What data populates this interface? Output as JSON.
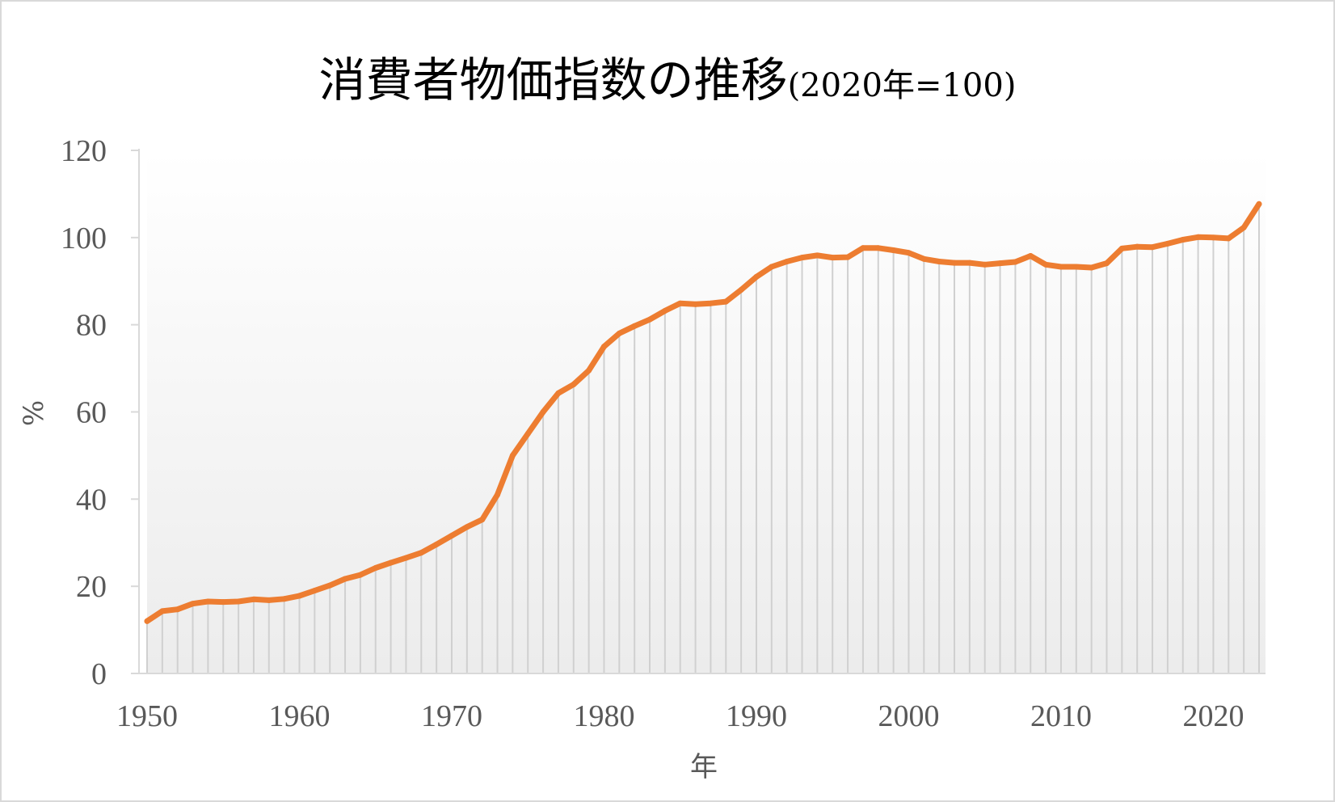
{
  "chart_data": {
    "type": "line",
    "title": "消費者物価指数の推移",
    "subtitle": "(2020年=100)",
    "xlabel": "年",
    "ylabel": "%",
    "ylim": [
      0,
      120
    ],
    "xlim": [
      1950,
      2023
    ],
    "y_ticks": [
      "0",
      "20",
      "40",
      "60",
      "80",
      "100",
      "120"
    ],
    "x_ticks": [
      "1950",
      "1960",
      "1970",
      "1980",
      "1990",
      "2000",
      "2010",
      "2020"
    ],
    "series_color": "#ed7d31",
    "drop_line_color": "#d0d0d0",
    "grid": false,
    "legend": "none",
    "x": [
      1950,
      1951,
      1952,
      1953,
      1954,
      1955,
      1956,
      1957,
      1958,
      1959,
      1960,
      1961,
      1962,
      1963,
      1964,
      1965,
      1966,
      1967,
      1968,
      1969,
      1970,
      1971,
      1972,
      1973,
      1974,
      1975,
      1976,
      1977,
      1978,
      1979,
      1980,
      1981,
      1982,
      1983,
      1984,
      1985,
      1986,
      1987,
      1988,
      1989,
      1990,
      1991,
      1992,
      1993,
      1994,
      1995,
      1996,
      1997,
      1998,
      1999,
      2000,
      2001,
      2002,
      2003,
      2004,
      2005,
      2006,
      2007,
      2008,
      2009,
      2010,
      2011,
      2012,
      2013,
      2014,
      2015,
      2016,
      2017,
      2018,
      2019,
      2020,
      2021,
      2022,
      2023
    ],
    "series": [
      {
        "values": [
          12.0,
          14.3,
          14.7,
          16.0,
          16.5,
          16.4,
          16.5,
          17.0,
          16.8,
          17.1,
          17.8,
          19.0,
          20.2,
          21.7,
          22.6,
          24.2,
          25.4,
          26.5,
          27.7,
          29.6,
          31.6,
          33.6,
          35.3,
          41.0,
          50.0,
          55.0,
          60.0,
          64.3,
          66.3,
          69.5,
          75.0,
          78.0,
          79.7,
          81.2,
          83.2,
          84.9,
          84.7,
          84.9,
          85.3,
          88.0,
          91.0,
          93.3,
          94.5,
          95.4,
          95.9,
          95.4,
          95.5,
          97.6,
          97.6,
          97.1,
          96.5,
          95.1,
          94.5,
          94.2,
          94.2,
          93.8,
          94.1,
          94.4,
          95.8,
          93.8,
          93.3,
          93.3,
          93.1,
          94.1,
          97.5,
          97.9,
          97.8,
          98.6,
          99.5,
          100.1,
          100.0,
          99.8,
          102.3,
          107.7
        ]
      }
    ]
  }
}
